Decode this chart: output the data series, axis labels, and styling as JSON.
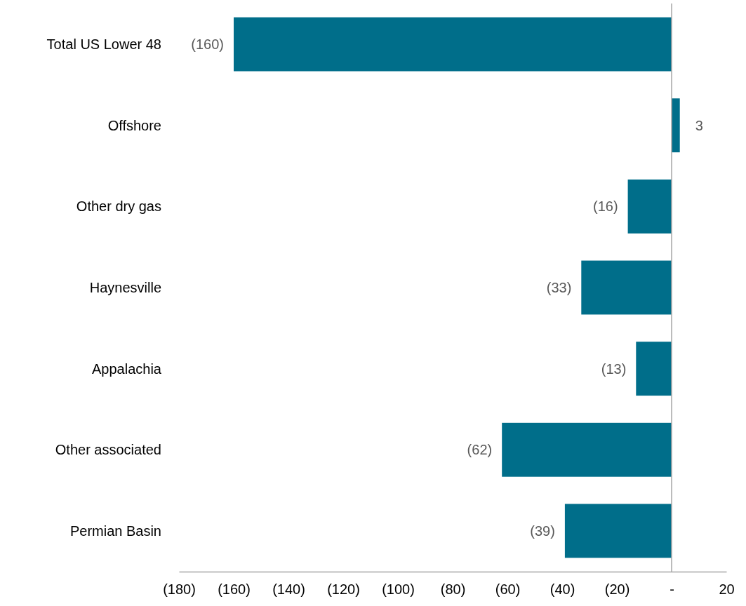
{
  "chart_data": {
    "type": "bar",
    "orientation": "horizontal",
    "categories": [
      "Total US Lower 48",
      "Offshore",
      "Other dry gas",
      "Haynesville",
      "Appalachia",
      "Other associated",
      "Permian Basin"
    ],
    "values": [
      -160,
      3,
      -16,
      -33,
      -13,
      -62,
      -39
    ],
    "value_labels": [
      "(160)",
      "3",
      "(16)",
      "(33)",
      "(13)",
      "(62)",
      "(39)"
    ],
    "color": "#006e8a",
    "xlim": [
      -180,
      20
    ],
    "xticks": [
      {
        "value": -180,
        "label": "(180)"
      },
      {
        "value": -160,
        "label": "(160)"
      },
      {
        "value": -140,
        "label": "(140)"
      },
      {
        "value": -120,
        "label": "(120)"
      },
      {
        "value": -100,
        "label": "(100)"
      },
      {
        "value": -80,
        "label": "(80)"
      },
      {
        "value": -60,
        "label": "(60)"
      },
      {
        "value": -40,
        "label": "(40)"
      },
      {
        "value": -20,
        "label": "(20)"
      },
      {
        "value": 0,
        "label": "-"
      },
      20
    ]
  }
}
